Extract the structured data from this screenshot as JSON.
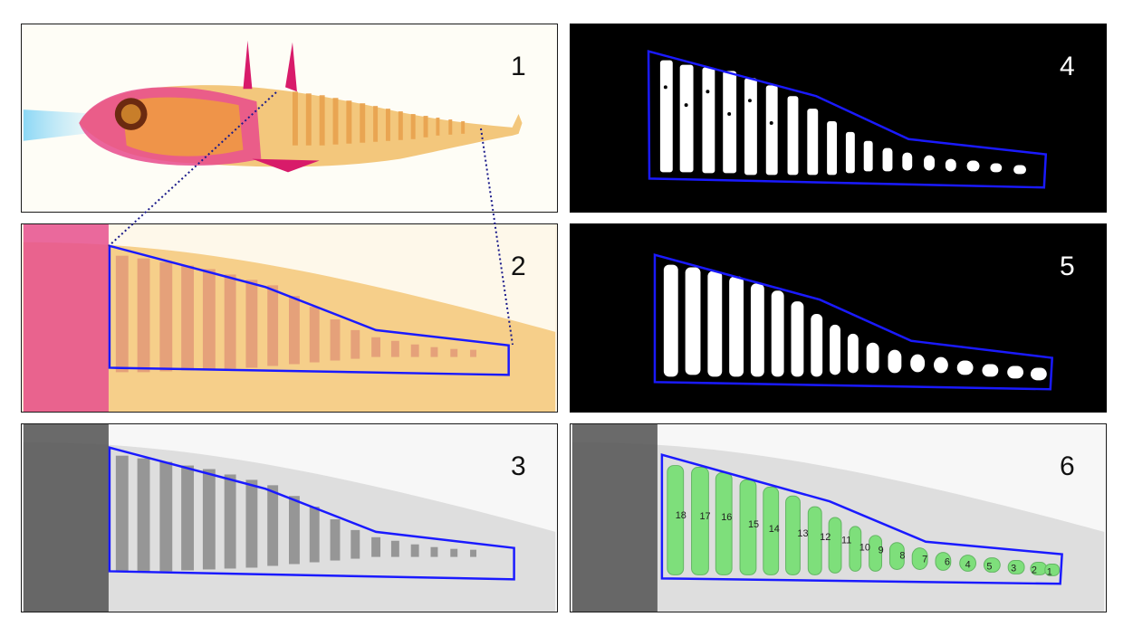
{
  "panels": [
    {
      "label": "1"
    },
    {
      "label": "2"
    },
    {
      "label": "3"
    },
    {
      "label": "4"
    },
    {
      "label": "5"
    },
    {
      "label": "6"
    }
  ],
  "vertebra_numbers": [
    "18",
    "17",
    "16",
    "15",
    "14",
    "13",
    "12",
    "11",
    "10",
    "9",
    "8",
    "7",
    "6",
    "4",
    "5",
    "3",
    "2",
    "1"
  ],
  "colors": {
    "roi_outline": "#1a1aff",
    "stain_pink": "#d81b6a",
    "body_yellow": "#f2c36b",
    "segment_green": "#5ee05a",
    "mask_white": "#ffffff",
    "mask_bg": "#000000"
  }
}
